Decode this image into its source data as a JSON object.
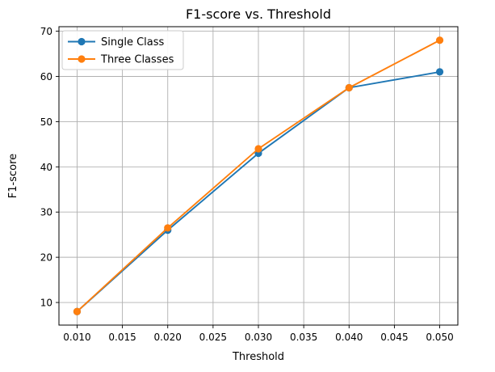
{
  "chart_data": {
    "type": "line",
    "title": "F1-score vs. Threshold",
    "xlabel": "Threshold",
    "ylabel": "F1-score",
    "x": [
      0.01,
      0.02,
      0.03,
      0.04,
      0.05
    ],
    "series": [
      {
        "name": "Single Class",
        "color": "#1f77b4",
        "values": [
          8,
          26,
          43,
          57.5,
          61
        ]
      },
      {
        "name": "Three Classes",
        "color": "#ff7f0e",
        "values": [
          8,
          26.5,
          44,
          57.5,
          68
        ]
      }
    ],
    "xlim": [
      0.008,
      0.052
    ],
    "ylim": [
      5,
      71
    ],
    "xticks": [
      0.01,
      0.015,
      0.02,
      0.025,
      0.03,
      0.035,
      0.04,
      0.045,
      0.05
    ],
    "xtick_labels": [
      "0.010",
      "0.015",
      "0.020",
      "0.025",
      "0.030",
      "0.035",
      "0.040",
      "0.045",
      "0.050"
    ],
    "yticks": [
      10,
      20,
      30,
      40,
      50,
      60,
      70
    ],
    "ytick_labels": [
      "10",
      "20",
      "30",
      "40",
      "50",
      "60",
      "70"
    ],
    "grid": true,
    "legend": {
      "position": "upper left",
      "entries": [
        "Single Class",
        "Three Classes"
      ]
    },
    "colors": {
      "background": "#ffffff",
      "grid": "#b0b0b0",
      "axis": "#000000",
      "legend_border": "#cccccc",
      "series_blue": "#1f77b4",
      "series_orange": "#ff7f0e"
    }
  }
}
